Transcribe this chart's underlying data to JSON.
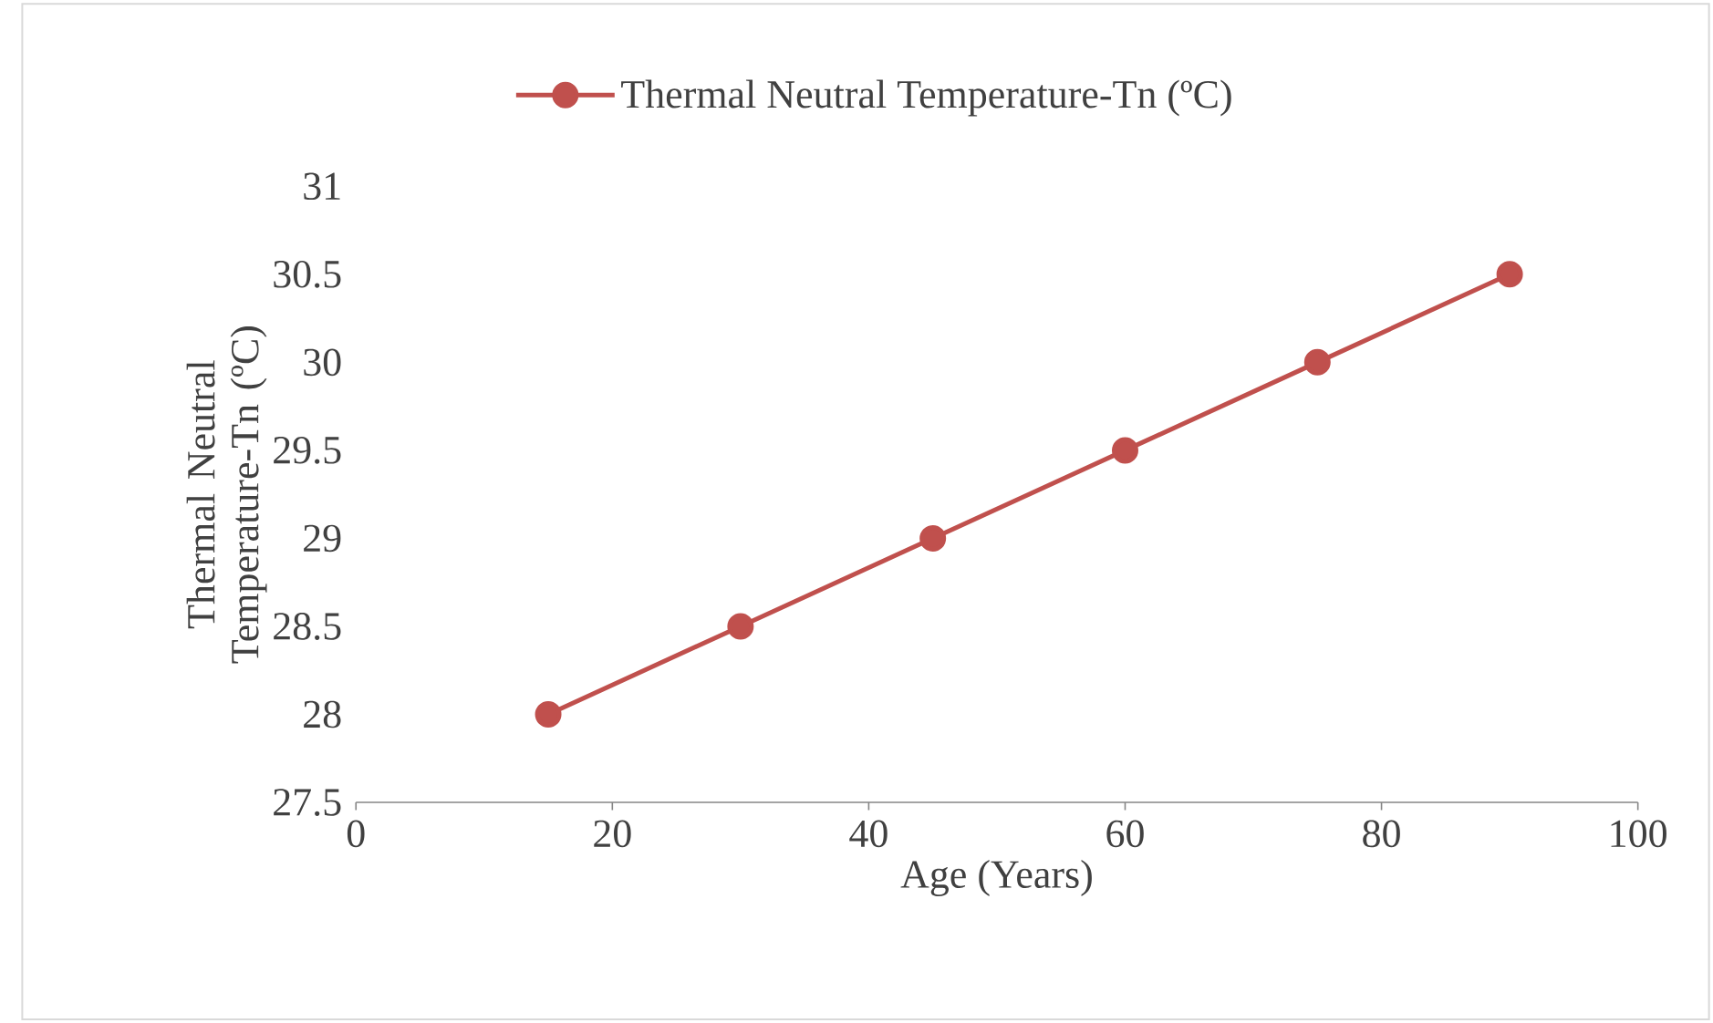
{
  "chart_data": {
    "type": "line",
    "xlabel": "Age (Years)",
    "ylabel": "Thermal Neutral Temperature-Tn (ºC)",
    "x": [
      15,
      30,
      45,
      60,
      75,
      90
    ],
    "series": [
      {
        "name": "Thermal Neutral Temperature-Tn (ºC)",
        "color": "#c0504d",
        "values": [
          28,
          28.5,
          29,
          29.5,
          30,
          30.5
        ]
      }
    ],
    "xlim": [
      0,
      100
    ],
    "xticks": [
      0,
      20,
      40,
      60,
      80,
      100
    ],
    "ylim": [
      27.5,
      31
    ],
    "yticks": [
      27.5,
      28,
      28.5,
      29,
      29.5,
      30,
      30.5,
      31
    ],
    "grid": false,
    "legend": "top",
    "marker": "circle",
    "line_style": "solid"
  }
}
